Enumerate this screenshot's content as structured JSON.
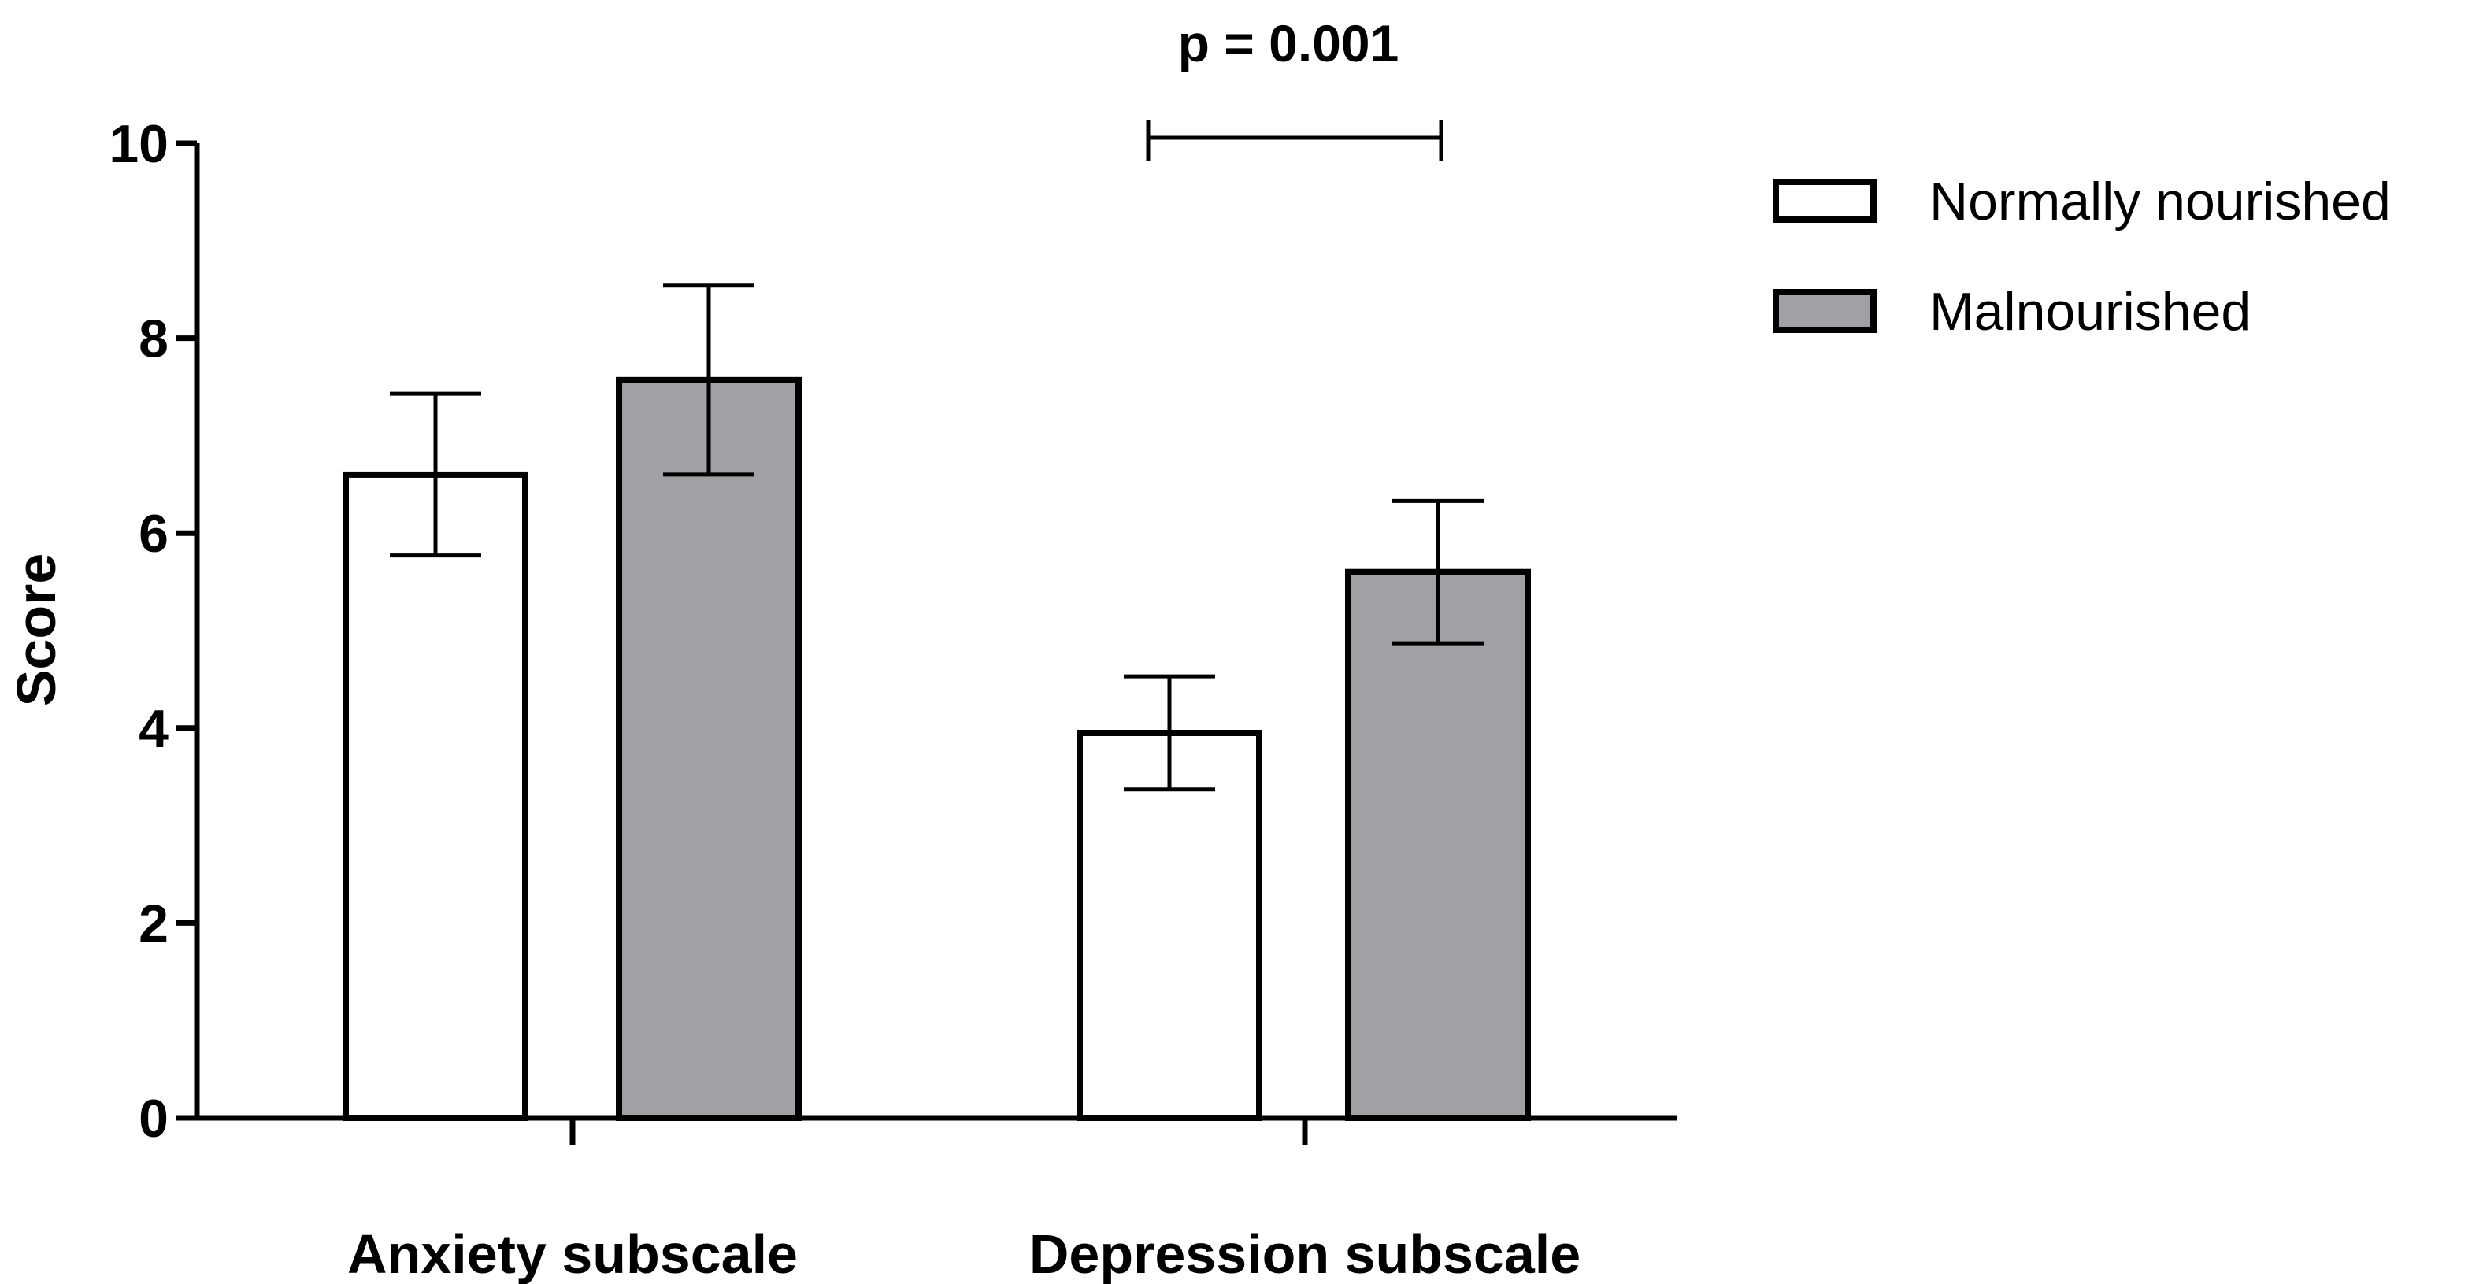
{
  "chart_data": {
    "type": "bar",
    "title": "",
    "xlabel": "",
    "ylabel": "Score",
    "ylim": [
      0,
      10
    ],
    "yticks": [
      "0",
      "2",
      "4",
      "6",
      "8",
      "10"
    ],
    "categories": [
      "Anxiety subscale",
      "Depression subscale"
    ],
    "series": [
      {
        "name": "Normally nourished",
        "color": "#ffffff",
        "values": [
          6.6,
          3.95
        ],
        "error": [
          0.83,
          0.58
        ]
      },
      {
        "name": "Malnourished",
        "color": "#a0a1a5",
        "values": [
          7.57,
          5.6
        ],
        "error": [
          0.97,
          0.73
        ]
      }
    ],
    "annotations": [
      {
        "text": "p = 0.001",
        "category": "Depression subscale"
      }
    ],
    "legend_position": "top-right",
    "grid": false
  }
}
